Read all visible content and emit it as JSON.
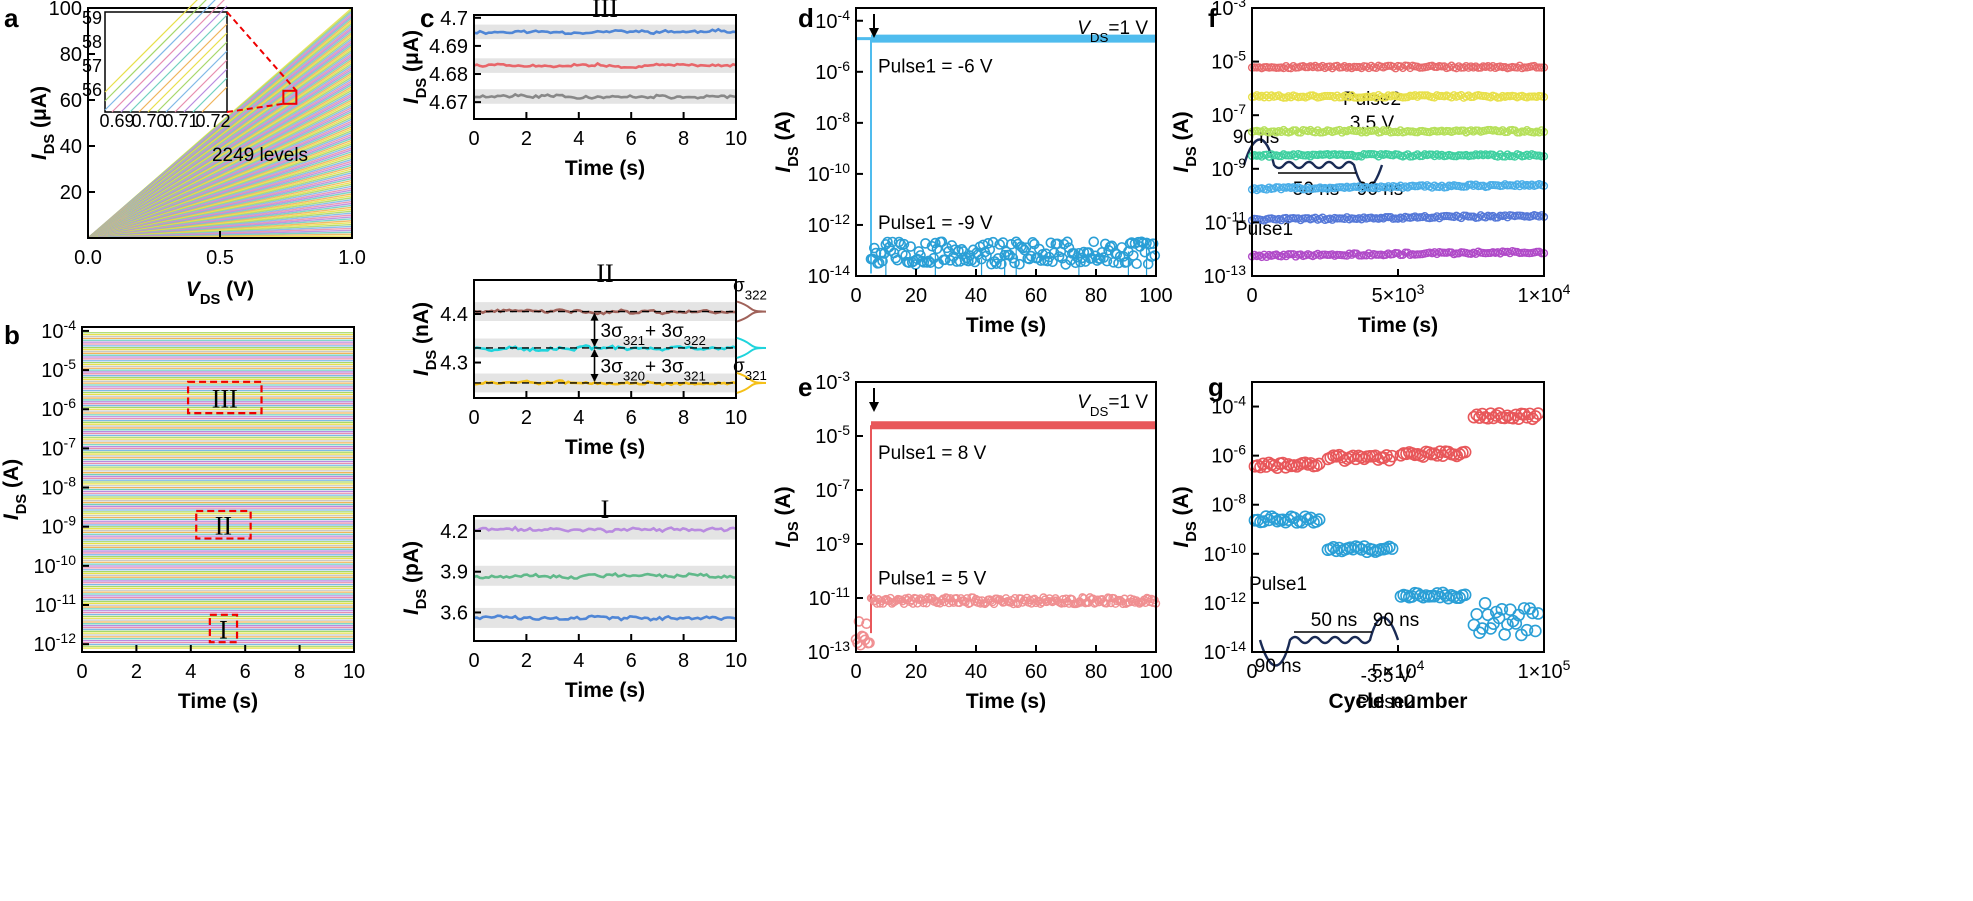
{
  "figure": {
    "panel_labels": [
      "a",
      "b",
      "c",
      "d",
      "e",
      "f",
      "g"
    ]
  },
  "chart_data": [
    {
      "panel": "a",
      "type": "line",
      "xlabel": "V_DS (V)",
      "ylabel": "I_DS (μA)",
      "xlim": [
        0,
        1.0
      ],
      "ylim": [
        0,
        100
      ],
      "xticks": [
        "0.0",
        "0.5",
        "1.0"
      ],
      "yticks": [
        "20",
        "40",
        "60",
        "80",
        "100"
      ],
      "annotation": "2249 levels",
      "levels": 2249,
      "description_values": {
        "max_current_uA_at_1V": 100
      },
      "inset": {
        "xticks": [
          "0.69",
          "0.70",
          "0.71",
          "0.72"
        ],
        "yticks": [
          "56",
          "57",
          "58",
          "59"
        ],
        "xlim": [
          0.685,
          0.725
        ],
        "ylim": [
          55.5,
          59.5
        ]
      }
    },
    {
      "panel": "b",
      "type": "line",
      "xlabel": "Time (s)",
      "ylabel": "I_DS (A)",
      "xlim": [
        0,
        10
      ],
      "ylim_log": [
        -12.2,
        -3.9
      ],
      "xticks": [
        "0",
        "2",
        "4",
        "6",
        "8",
        "10"
      ],
      "yticks": [
        "-12",
        "-11",
        "-10",
        "-9",
        "-8",
        "-7",
        "-6",
        "-5",
        "-4"
      ],
      "boxes": [
        {
          "label": "III",
          "t_range": [
            3.9,
            6.6
          ],
          "log_range": [
            -5.3,
            -6.1
          ]
        },
        {
          "label": "II",
          "t_range": [
            4.2,
            6.2
          ],
          "log_range": [
            -8.6,
            -9.3
          ]
        },
        {
          "label": "I",
          "t_range": [
            4.7,
            5.7
          ],
          "log_range": [
            -11.25,
            -11.95
          ]
        }
      ]
    },
    {
      "panel": "c-top",
      "type": "line",
      "xlabel": "Time (s)",
      "ylabel": "I_DS (μA)",
      "title": "III",
      "xlim": [
        0,
        10
      ],
      "ylim": [
        4.664,
        4.701
      ],
      "xticks": [
        "0",
        "2",
        "4",
        "6",
        "8",
        "10"
      ],
      "yticks": [
        "4.67",
        "4.68",
        "4.69",
        "4.7"
      ],
      "series": [
        {
          "color": "#4f86d6",
          "mean": 4.695
        },
        {
          "color": "#e8666a",
          "mean": 4.683
        },
        {
          "color": "#888888",
          "mean": 4.672
        }
      ]
    },
    {
      "panel": "c-mid",
      "type": "line",
      "xlabel": "Time (s)",
      "ylabel": "I_DS (nA)",
      "title": "II",
      "xlim": [
        0,
        10
      ],
      "ylim": [
        4.227,
        4.47
      ],
      "xticks": [
        "0",
        "2",
        "4",
        "6",
        "8",
        "10"
      ],
      "yticks": [
        "4.3",
        "4.4"
      ],
      "series": [
        {
          "color": "#a0625a",
          "mean": 4.405
        },
        {
          "color": "#1fd4dc",
          "mean": 4.33
        },
        {
          "color": "#f5c018",
          "mean": 4.258
        }
      ],
      "labels": {
        "sigma_top": "σ322",
        "sigma_bottom": "σ321",
        "diff_top": "3σ321+ 3σ322",
        "diff_bottom": "3σ320+ 3σ321"
      }
    },
    {
      "panel": "c-bot",
      "type": "line",
      "xlabel": "Time (s)",
      "ylabel": "I_DS (pA)",
      "title": "I",
      "xlim": [
        0,
        10
      ],
      "ylim": [
        3.39,
        4.31
      ],
      "xticks": [
        "0",
        "2",
        "4",
        "6",
        "8",
        "10"
      ],
      "yticks": [
        "3.6",
        "3.9",
        "4.2"
      ],
      "series": [
        {
          "color": "#b98be0",
          "mean": 4.21
        },
        {
          "color": "#60b98a",
          "mean": 3.87
        },
        {
          "color": "#4f86d6",
          "mean": 3.56
        }
      ]
    },
    {
      "panel": "d",
      "type": "scatter",
      "xlabel": "Time (s)",
      "ylabel": "I_DS (A)",
      "xlim": [
        0,
        100
      ],
      "ylim_log": [
        -14,
        -3.5
      ],
      "xticks": [
        "0",
        "20",
        "40",
        "60",
        "80",
        "100"
      ],
      "yticks": [
        "-14",
        "-12",
        "-10",
        "-8",
        "-6",
        "-4"
      ],
      "vds_label": "V",
      "vds_sub": "DS",
      "vds_val": "=1 V",
      "pulse_time_s": 5,
      "series": [
        {
          "label": "Pulse1 = -6 V",
          "color": "#4fbcee",
          "log_value": -4.7
        },
        {
          "label": "Pulse1 = -9 V",
          "color": "#2a9fd6",
          "log_value": -13.1
        }
      ],
      "waveform": {
        "w1": "90 ns",
        "w2": "50 ns",
        "w3": "90 ns",
        "p1": "Pulse1",
        "p2": "Pulse2",
        "p2v": "3.5 V"
      }
    },
    {
      "panel": "e",
      "type": "scatter",
      "xlabel": "Time (s)",
      "ylabel": "I_DS (A)",
      "xlim": [
        0,
        100
      ],
      "ylim_log": [
        -13,
        -3
      ],
      "xticks": [
        "0",
        "20",
        "40",
        "60",
        "80",
        "100"
      ],
      "yticks": [
        "-13",
        "-11",
        "-9",
        "-7",
        "-5",
        "-3"
      ],
      "vds_label": "V",
      "vds_sub": "DS",
      "vds_val": "=1 V",
      "pulse_time_s": 5,
      "series": [
        {
          "label": "Pulse1 = 8 V",
          "color": "#e8575a",
          "log_value": -4.6
        },
        {
          "label": "Pulse1 = 5 V",
          "color": "#f08f91",
          "log_value": -11.1
        }
      ],
      "waveform": {
        "w1": "90 ns",
        "w2": "50 ns",
        "w3": "90 ns",
        "p1": "Pulse1",
        "p2": "Pulse2",
        "p2v": "-3.5 V"
      }
    },
    {
      "panel": "f",
      "type": "scatter",
      "xlabel": "Time (s)",
      "ylabel": "I_DS (A)",
      "xlim": [
        0,
        10000
      ],
      "ylim_log": [
        -13,
        -3
      ],
      "xticks": [
        "0",
        "5×10",
        "1×10"
      ],
      "xtick_sup": [
        "",
        "3",
        "4"
      ],
      "yticks": [
        "-13",
        "-11",
        "-9",
        "-7",
        "-5",
        "-3"
      ],
      "series": [
        {
          "color": "#e86a6c",
          "log_value": -5.2
        },
        {
          "color": "#e8e04a",
          "log_value": -6.3
        },
        {
          "color": "#b6e05a",
          "log_value": -7.6
        },
        {
          "color": "#3fd0a0",
          "log_value": -8.5
        },
        {
          "color": "#4aaee8",
          "log_value": -9.75
        },
        {
          "color": "#5578d8",
          "log_value": -10.9
        },
        {
          "color": "#b04ac8",
          "log_value": -12.25
        }
      ]
    },
    {
      "panel": "g",
      "type": "scatter",
      "xlabel": "Cycle number",
      "ylabel": "I_DS (A)",
      "xlim": [
        0,
        100000
      ],
      "ylim_log": [
        -14,
        -3
      ],
      "xticks": [
        "0",
        "5×10",
        "1×10"
      ],
      "xtick_sup": [
        "",
        "4",
        "5"
      ],
      "yticks": [
        "-14",
        "-12",
        "-10",
        "-8",
        "-6",
        "-4"
      ],
      "series": [
        {
          "color": "#e8575a",
          "segments": [
            {
              "x": [
                0,
                25000
              ],
              "log_value": -6.4
            },
            {
              "x": [
                25000,
                50000
              ],
              "log_value": -6.1
            },
            {
              "x": [
                50000,
                75000
              ],
              "log_value": -5.95
            },
            {
              "x": [
                75000,
                100000
              ],
              "log_value": -4.4
            }
          ]
        },
        {
          "color": "#2a9fd6",
          "segments": [
            {
              "x": [
                0,
                25000
              ],
              "log_value": -8.6
            },
            {
              "x": [
                25000,
                50000
              ],
              "log_value": -9.8
            },
            {
              "x": [
                50000,
                75000
              ],
              "log_value": -11.7
            },
            {
              "x": [
                75000,
                100000
              ],
              "log_value": -12.7
            }
          ]
        }
      ]
    }
  ]
}
